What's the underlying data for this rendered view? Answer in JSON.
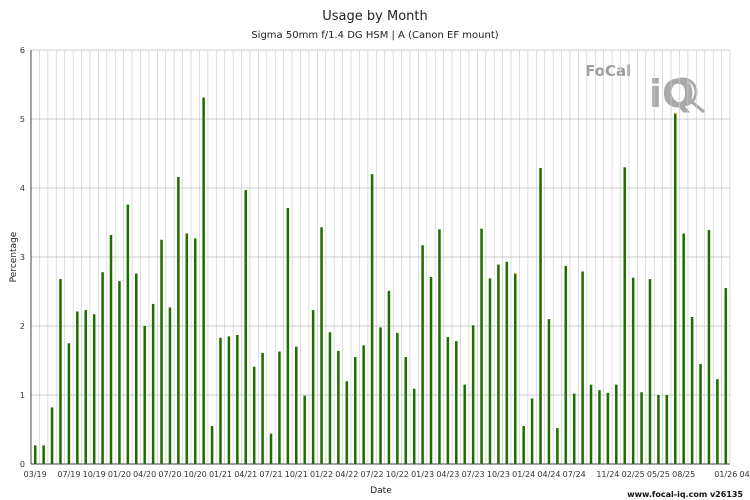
{
  "chart_data": {
    "type": "bar",
    "title": "Usage by Month",
    "subtitle": "Sigma 50mm f/1.4 DG HSM | A (Canon EF mount)",
    "xlabel": "Date",
    "ylabel": "Percentage",
    "ylim": [
      0,
      6
    ],
    "yticks": [
      0,
      1,
      2,
      3,
      4,
      5,
      6
    ],
    "grid": true,
    "bar_color": "#1e6e00",
    "first_month": "2019-03",
    "xtick_labels": [
      "03/19",
      "07/19",
      "10/19",
      "01/20",
      "04/20",
      "07/20",
      "10/20",
      "01/21",
      "04/21",
      "07/21",
      "10/21",
      "01/22",
      "04/22",
      "07/22",
      "10/22",
      "01/23",
      "04/23",
      "07/23",
      "10/23",
      "01/24",
      "04/24",
      "07/24",
      "11/24",
      "02/25",
      "05/25",
      "08/25",
      "01/26",
      "04/26"
    ],
    "values": [
      0.27,
      0.27,
      0.82,
      2.68,
      1.75,
      2.21,
      2.23,
      2.17,
      2.78,
      3.32,
      2.65,
      3.76,
      2.76,
      2.0,
      2.32,
      3.25,
      2.27,
      4.16,
      3.34,
      3.27,
      5.31,
      0.55,
      1.83,
      1.85,
      1.87,
      3.97,
      1.41,
      1.61,
      0.44,
      1.63,
      3.71,
      1.7,
      0.99,
      2.23,
      3.43,
      1.91,
      1.64,
      1.2,
      1.55,
      1.72,
      4.2,
      1.98,
      2.51,
      1.9,
      1.55,
      1.09,
      3.17,
      2.71,
      3.4,
      1.84,
      1.78,
      1.15,
      2.01,
      3.41,
      2.69,
      2.89,
      2.93,
      2.76,
      0.55,
      0.95,
      4.29,
      2.1,
      0.52,
      2.87,
      1.02,
      2.79,
      1.15,
      1.07,
      1.03,
      1.15,
      4.3,
      2.7,
      1.04,
      2.68,
      1.0,
      1.0,
      5.08,
      3.34,
      2.13,
      1.45,
      3.39,
      1.23,
      2.55
    ]
  },
  "footer": "www.focal-iq.com  v26135",
  "logo": {
    "text_top": "FoCal",
    "text_bottom": "iQ",
    "color": "#9c9c9c"
  }
}
